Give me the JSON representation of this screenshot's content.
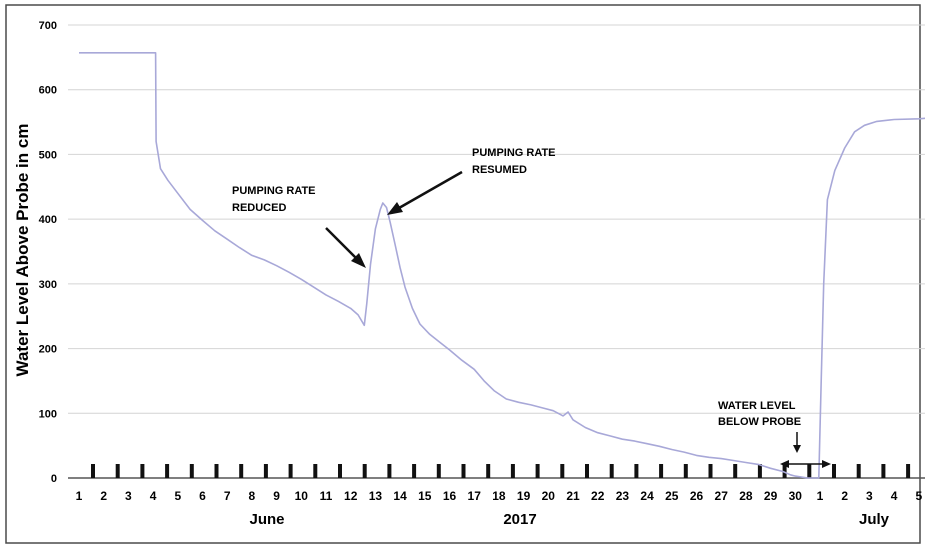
{
  "chart_data": {
    "type": "line",
    "title": "",
    "ylabel": "Water Level Above Probe in cm",
    "ylim": [
      0,
      700
    ],
    "yticks": [
      0,
      100,
      200,
      300,
      400,
      500,
      600,
      700
    ],
    "grid": "horizontal",
    "x_day_labels": [
      "1",
      "2",
      "3",
      "4",
      "5",
      "6",
      "7",
      "8",
      "9",
      "10",
      "11",
      "12",
      "13",
      "14",
      "15",
      "16",
      "17",
      "18",
      "19",
      "20",
      "21",
      "22",
      "23",
      "24",
      "25",
      "26",
      "27",
      "28",
      "29",
      "30",
      "1",
      "2",
      "3",
      "4",
      "5"
    ],
    "x_group_labels": [
      "June",
      "2017",
      "July"
    ],
    "series": [
      {
        "color": "#a8a8d8",
        "points": [
          [
            0.0,
            657
          ],
          [
            3.1,
            657
          ],
          [
            3.12,
            520
          ],
          [
            3.3,
            478
          ],
          [
            3.6,
            460
          ],
          [
            4.0,
            440
          ],
          [
            4.5,
            415
          ],
          [
            5.0,
            398
          ],
          [
            5.5,
            382
          ],
          [
            6.0,
            369
          ],
          [
            6.5,
            356
          ],
          [
            7.0,
            344
          ],
          [
            7.5,
            337
          ],
          [
            8.0,
            328
          ],
          [
            8.5,
            318
          ],
          [
            9.0,
            307
          ],
          [
            9.5,
            295
          ],
          [
            10.0,
            283
          ],
          [
            10.5,
            273
          ],
          [
            11.0,
            262
          ],
          [
            11.3,
            252
          ],
          [
            11.55,
            236
          ],
          [
            11.65,
            270
          ],
          [
            11.8,
            330
          ],
          [
            12.0,
            385
          ],
          [
            12.2,
            415
          ],
          [
            12.3,
            425
          ],
          [
            12.45,
            418
          ],
          [
            12.6,
            395
          ],
          [
            12.8,
            360
          ],
          [
            13.0,
            325
          ],
          [
            13.2,
            295
          ],
          [
            13.5,
            262
          ],
          [
            13.8,
            238
          ],
          [
            14.2,
            222
          ],
          [
            14.6,
            210
          ],
          [
            15.0,
            198
          ],
          [
            15.5,
            182
          ],
          [
            16.0,
            168
          ],
          [
            16.4,
            150
          ],
          [
            16.8,
            135
          ],
          [
            17.3,
            122
          ],
          [
            17.8,
            117
          ],
          [
            18.3,
            113
          ],
          [
            18.8,
            108
          ],
          [
            19.2,
            104
          ],
          [
            19.6,
            96
          ],
          [
            19.8,
            102
          ],
          [
            20.0,
            90
          ],
          [
            20.5,
            78
          ],
          [
            21.0,
            70
          ],
          [
            21.5,
            65
          ],
          [
            22.0,
            60
          ],
          [
            22.5,
            57
          ],
          [
            23.0,
            53
          ],
          [
            23.5,
            49
          ],
          [
            24.0,
            44
          ],
          [
            24.5,
            40
          ],
          [
            25.0,
            35
          ],
          [
            25.5,
            32
          ],
          [
            26.0,
            30
          ],
          [
            26.5,
            27
          ],
          [
            27.0,
            24
          ],
          [
            27.5,
            21
          ],
          [
            28.0,
            15
          ],
          [
            28.5,
            10
          ],
          [
            28.8,
            5
          ],
          [
            29.0,
            3
          ],
          [
            29.5,
            0
          ],
          [
            29.95,
            0
          ],
          [
            30.05,
            150
          ],
          [
            30.15,
            300
          ],
          [
            30.3,
            430
          ],
          [
            30.6,
            475
          ],
          [
            31.0,
            510
          ],
          [
            31.4,
            535
          ],
          [
            31.8,
            545
          ],
          [
            32.3,
            551
          ],
          [
            33.0,
            554
          ],
          [
            34.0,
            555
          ],
          [
            34.3,
            556
          ]
        ]
      }
    ],
    "annotations": [
      {
        "lines": [
          "PUMPING RATE",
          "REDUCED"
        ]
      },
      {
        "lines": [
          "PUMPING RATE",
          "RESUMED"
        ]
      },
      {
        "lines": [
          "WATER LEVEL",
          "BELOW PROBE"
        ]
      }
    ]
  }
}
